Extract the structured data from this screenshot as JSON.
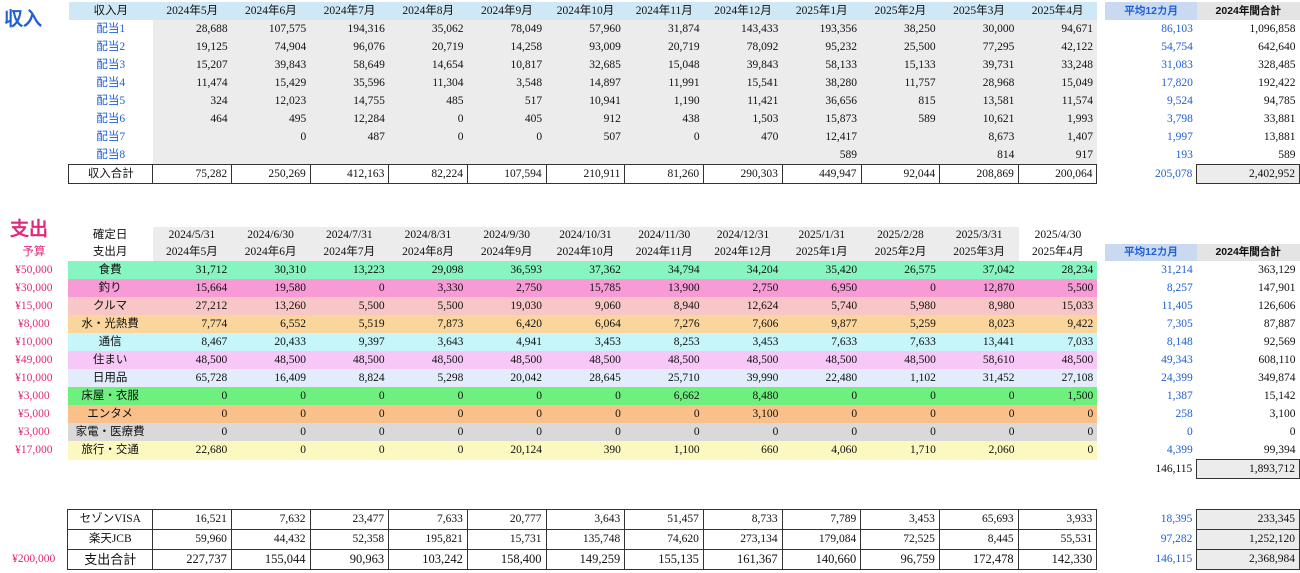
{
  "income": {
    "title": "収入",
    "header_label": "収入月",
    "months": [
      "2024年5月",
      "2024年6月",
      "2024年7月",
      "2024年8月",
      "2024年9月",
      "2024年10月",
      "2024年11月",
      "2024年12月",
      "2025年1月",
      "2025年2月",
      "2025年3月",
      "2025年4月"
    ],
    "avg_label": "平均12カ月",
    "total_label": "2024年間合計",
    "rows": [
      {
        "label": "配当1",
        "values": [
          "28,688",
          "107,575",
          "194,316",
          "35,062",
          "78,049",
          "57,960",
          "31,874",
          "143,433",
          "193,356",
          "38,250",
          "30,000",
          "94,671"
        ],
        "avg": "86,103",
        "total": "1,096,858"
      },
      {
        "label": "配当2",
        "values": [
          "19,125",
          "74,904",
          "96,076",
          "20,719",
          "14,258",
          "93,009",
          "20,719",
          "78,092",
          "95,232",
          "25,500",
          "77,295",
          "42,122"
        ],
        "avg": "54,754",
        "total": "642,640"
      },
      {
        "label": "配当3",
        "values": [
          "15,207",
          "39,843",
          "58,649",
          "14,654",
          "10,817",
          "32,685",
          "15,048",
          "39,843",
          "58,133",
          "15,133",
          "39,731",
          "33,248"
        ],
        "avg": "31,083",
        "total": "328,485"
      },
      {
        "label": "配当4",
        "values": [
          "11,474",
          "15,429",
          "35,596",
          "11,304",
          "3,548",
          "14,897",
          "11,991",
          "15,541",
          "38,280",
          "11,757",
          "28,968",
          "15,049"
        ],
        "avg": "17,820",
        "total": "192,422"
      },
      {
        "label": "配当5",
        "values": [
          "324",
          "12,023",
          "14,755",
          "485",
          "517",
          "10,941",
          "1,190",
          "11,421",
          "36,656",
          "815",
          "13,581",
          "11,574"
        ],
        "avg": "9,524",
        "total": "94,785"
      },
      {
        "label": "配当6",
        "values": [
          "464",
          "495",
          "12,284",
          "0",
          "405",
          "912",
          "438",
          "1,503",
          "15,873",
          "589",
          "10,621",
          "1,993"
        ],
        "avg": "3,798",
        "total": "33,881"
      },
      {
        "label": "配当7",
        "values": [
          "",
          "0",
          "487",
          "0",
          "0",
          "507",
          "0",
          "470",
          "12,417",
          "",
          "8,673",
          "1,407"
        ],
        "avg": "1,997",
        "total": "13,881"
      },
      {
        "label": "配当8",
        "values": [
          "",
          "",
          "",
          "",
          "",
          "",
          "",
          "",
          "589",
          "",
          "814",
          "917"
        ],
        "avg": "193",
        "total": "589"
      }
    ],
    "sum": {
      "label": "収入合計",
      "values": [
        "75,282",
        "250,269",
        "412,163",
        "82,224",
        "107,594",
        "210,911",
        "81,260",
        "290,303",
        "449,947",
        "92,044",
        "208,869",
        "200,064"
      ],
      "avg": "205,078",
      "total": "2,402,952"
    }
  },
  "expense": {
    "title": "支出",
    "budget_label": "予算",
    "confirm_label": "確定日",
    "month_label": "支出月",
    "dates": [
      "2024/5/31",
      "2024/6/30",
      "2024/7/31",
      "2024/8/31",
      "2024/9/30",
      "2024/10/31",
      "2024/11/30",
      "2024/12/31",
      "2025/1/31",
      "2025/2/28",
      "2025/3/31",
      "2025/4/30"
    ],
    "months": [
      "2024年5月",
      "2024年6月",
      "2024年7月",
      "2024年8月",
      "2024年9月",
      "2024年10月",
      "2024年11月",
      "2024年12月",
      "2025年1月",
      "2025年2月",
      "2025年3月",
      "2025年4月"
    ],
    "avg_label": "平均12カ月",
    "total_label": "2024年間合計",
    "rows": [
      {
        "budget": "¥50,000",
        "label": "食費",
        "color": "#86f5c0",
        "values": [
          "31,712",
          "30,310",
          "13,223",
          "29,098",
          "36,593",
          "37,362",
          "34,794",
          "34,204",
          "35,420",
          "26,575",
          "37,042",
          "28,234"
        ],
        "avg": "31,214",
        "total": "363,129"
      },
      {
        "budget": "¥30,000",
        "label": "釣り",
        "color": "#f79ad6",
        "values": [
          "15,664",
          "19,580",
          "0",
          "3,330",
          "2,750",
          "15,785",
          "13,900",
          "2,750",
          "6,950",
          "0",
          "12,870",
          "5,500"
        ],
        "avg": "8,257",
        "total": "147,901"
      },
      {
        "budget": "¥15,000",
        "label": "クルマ",
        "color": "#f8c6c6",
        "values": [
          "27,212",
          "13,260",
          "5,500",
          "5,500",
          "19,030",
          "9,060",
          "8,940",
          "12,624",
          "5,740",
          "5,980",
          "8,980",
          "15,033"
        ],
        "avg": "11,405",
        "total": "126,606"
      },
      {
        "budget": "¥8,000",
        "label": "水・光熱費",
        "color": "#fbd69c",
        "values": [
          "7,774",
          "6,552",
          "5,519",
          "7,873",
          "6,420",
          "6,064",
          "7,276",
          "7,606",
          "9,877",
          "5,259",
          "8,023",
          "9,422"
        ],
        "avg": "7,305",
        "total": "87,887"
      },
      {
        "budget": "¥10,000",
        "label": "通信",
        "color": "#c6f5fa",
        "values": [
          "8,467",
          "20,433",
          "9,397",
          "3,643",
          "4,941",
          "3,453",
          "8,253",
          "3,453",
          "7,633",
          "7,633",
          "13,441",
          "7,033"
        ],
        "avg": "8,148",
        "total": "92,569"
      },
      {
        "budget": "¥49,000",
        "label": "住まい",
        "color": "#f7c8f7",
        "values": [
          "48,500",
          "48,500",
          "48,500",
          "48,500",
          "48,500",
          "48,500",
          "48,500",
          "48,500",
          "48,500",
          "48,500",
          "58,610",
          "48,500"
        ],
        "avg": "49,343",
        "total": "608,110"
      },
      {
        "budget": "¥10,000",
        "label": "日用品",
        "color": "#e2ecfa",
        "values": [
          "65,728",
          "16,409",
          "8,824",
          "5,298",
          "20,042",
          "28,645",
          "25,710",
          "39,990",
          "22,480",
          "1,102",
          "31,452",
          "27,108"
        ],
        "avg": "24,399",
        "total": "349,874"
      },
      {
        "budget": "¥3,000",
        "label": "床屋・衣服",
        "color": "#6ef07e",
        "values": [
          "0",
          "0",
          "0",
          "0",
          "0",
          "0",
          "6,662",
          "8,480",
          "0",
          "0",
          "0",
          "1,500"
        ],
        "avg": "1,387",
        "total": "15,142"
      },
      {
        "budget": "¥5,000",
        "label": "エンタメ",
        "color": "#f9c08a",
        "values": [
          "0",
          "0",
          "0",
          "0",
          "0",
          "0",
          "0",
          "3,100",
          "0",
          "0",
          "0",
          "0"
        ],
        "avg": "258",
        "total": "3,100"
      },
      {
        "budget": "¥3,000",
        "label": "家電・医療費",
        "color": "#d9d9d9",
        "values": [
          "0",
          "0",
          "0",
          "0",
          "0",
          "0",
          "0",
          "0",
          "0",
          "0",
          "0",
          "0"
        ],
        "avg": "0",
        "total": "0"
      },
      {
        "budget": "¥17,000",
        "label": "旅行・交通",
        "color": "#fbf8c0",
        "values": [
          "22,680",
          "0",
          "0",
          "0",
          "20,124",
          "390",
          "1,100",
          "660",
          "4,060",
          "1,710",
          "2,060",
          "0"
        ],
        "avg": "4,399",
        "total": "99,394"
      }
    ],
    "subtotal": {
      "avg": "146,115",
      "total": "1,893,712"
    },
    "cards": [
      {
        "label": "セゾンVISA",
        "values": [
          "16,521",
          "7,632",
          "23,477",
          "7,633",
          "20,777",
          "3,643",
          "51,457",
          "8,733",
          "7,789",
          "3,453",
          "65,693",
          "3,933"
        ],
        "avg": "18,395",
        "total": "233,345"
      },
      {
        "label": "楽天JCB",
        "values": [
          "59,960",
          "44,432",
          "52,358",
          "195,821",
          "15,731",
          "135,748",
          "74,620",
          "273,134",
          "179,084",
          "72,525",
          "8,445",
          "55,531"
        ],
        "avg": "97,282",
        "total": "1,252,120"
      }
    ],
    "sum": {
      "budget": "¥200,000",
      "label": "支出合計",
      "values": [
        "227,737",
        "155,044",
        "90,963",
        "103,242",
        "158,400",
        "149,259",
        "155,135",
        "161,367",
        "140,660",
        "96,759",
        "172,478",
        "142,330"
      ],
      "avg": "146,115",
      "total": "2,368,984"
    }
  }
}
